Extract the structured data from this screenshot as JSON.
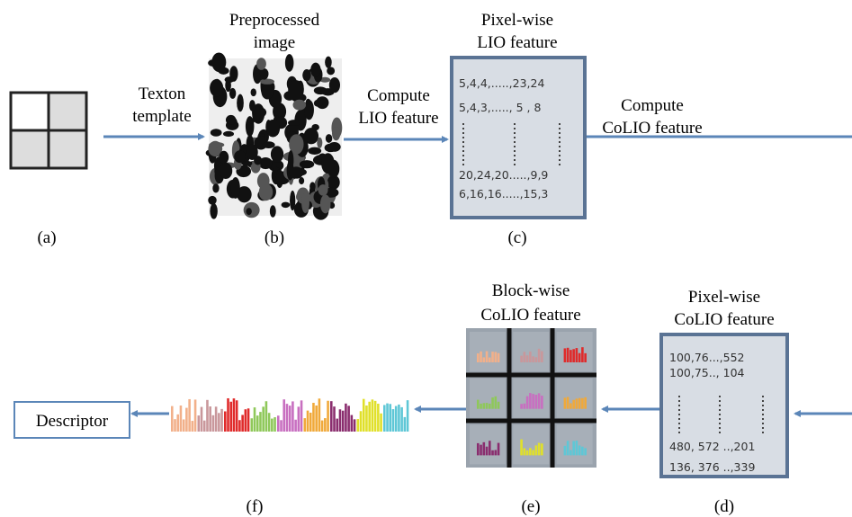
{
  "steps": [
    {
      "label": "(a)"
    },
    {
      "title": [
        "Preprocessed",
        "image"
      ],
      "label": "(b)"
    },
    {
      "title": [
        "Pixel-wise",
        "LIO feature"
      ],
      "label": "(c)",
      "content": [
        "5,4,4,.....,23,24",
        "5,4,3,.....,  5 , 8",
        "20,24,20.....,9,9",
        "6,16,16.....,15,3"
      ]
    },
    {
      "title": [
        "Pixel-wise",
        "CoLIO feature"
      ],
      "label": "(d)",
      "content": [
        "100,76...,552",
        "100,75.., 104",
        "480, 572 ..,201",
        "136, 376 ..,339"
      ]
    },
    {
      "title": [
        "Block-wise",
        "CoLIO feature"
      ],
      "label": "(e)"
    },
    {
      "label": "(f)"
    }
  ],
  "arrows": [
    {
      "label": [
        "Texton",
        "template"
      ]
    },
    {
      "label": [
        "Compute",
        "LIO feature"
      ]
    },
    {
      "label": [
        "Compute",
        "CoLIO feature"
      ]
    }
  ],
  "output": {
    "label": "Descriptor"
  }
}
